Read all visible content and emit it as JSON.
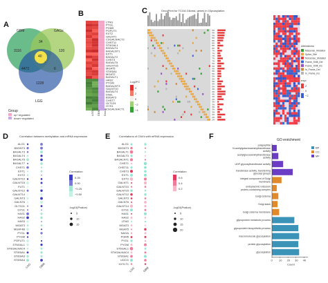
{
  "panels": {
    "A": {
      "label": "A",
      "sets": [
        "GBM",
        "GAGs",
        "LGG"
      ],
      "regions": {
        "gbm_only": "3116",
        "gbm_gags": "34",
        "gags_only": "120",
        "center": "40",
        "gbm_lgg": "4472",
        "gags_lgg": "6",
        "lgg_only": "1228",
        "inner": "3"
      },
      "legend": {
        "title": "Group",
        "items": [
          "up−regulated",
          "down−regulated"
        ],
        "colors": [
          "#f4a6c6",
          "#c9a8e8"
        ]
      }
    },
    "B": {
      "label": "B",
      "genes": [
        "LTNG",
        "PYGL",
        "PGM5",
        "POFUT1",
        "EXT2",
        "GALNT1",
        "CSGALNACT2",
        "CHST11",
        "ST6GAL1",
        "B3GALT4",
        "B4GALNT1",
        "EXT1",
        "B3GALT2",
        "CHST3",
        "B4GALT5",
        "GALNT16",
        "MGAT5",
        "ST8SIA1",
        "MGAT2",
        "B4GALT1",
        "HAS2",
        "PYGM",
        "B4GALNT3",
        "GALNT10",
        "B4GALT4",
        "DSEL",
        "B3GAT3",
        "CHST7",
        "GLT1D1",
        "GYS1",
        "CSGALNACT1"
      ],
      "columns": [
        "LGG",
        "GBM",
        "Group"
      ],
      "legend_title": "Log2FC",
      "legend_ticks": [
        "4",
        "2",
        "0",
        "−2",
        "−4"
      ]
    },
    "C": {
      "label": "C",
      "title": "OncoPrint for TCGA Glioma, genes in Glycosylation",
      "legend_title": "Alterations",
      "legend_items": [
        "Missense_Mutation",
        "Splice_Site",
        "Nonsense_Mutation",
        "Frame_Shift_Del",
        "Frame_Shift_Ins",
        "In_Frame_Del",
        "In_Frame_Ins"
      ],
      "legend_colors": [
        "#2ea02e",
        "#e8a33c",
        "#e23b3b",
        "#3b63d6",
        "#9a4fc9",
        "#c9883b",
        "#b5b5b5"
      ],
      "heat_title": "expr",
      "heat_ticks": [
        "2",
        "0",
        "−2"
      ]
    },
    "D": {
      "label": "D",
      "title": "Correlation between methylation and mRNA expression",
      "genes": [
        "ALG1",
        "B3GNT3",
        "B4GALT3",
        "B4GALT4",
        "B4GALT5",
        "B4GALT7",
        "CHST1",
        "EXT1",
        "EXT2",
        "GALNT10",
        "GALNT15",
        "FUT1",
        "GALNT12",
        "GALNT14",
        "GALNT3",
        "GALNT6",
        "GLT1D1",
        "GYS1",
        "HAS1",
        "HAS2",
        "HAS3",
        "MGAT3",
        "MGAT4B",
        "PYGL",
        "PYGM",
        "POFUT1",
        "ST6GAL1",
        "ST6GALNAC4",
        "ST8SIA1",
        "ST8SIA3",
        "ST8SIA4"
      ],
      "columns": [
        "LGG",
        "GBM"
      ],
      "cor_title": "Correlation",
      "cor_ticks": [
        "0.25",
        "0.00",
        "−0.25",
        "−0.50"
      ],
      "size_title": "-log10(Pvalue)",
      "size_ticks": [
        "5",
        "10",
        "15"
      ]
    },
    "E": {
      "label": "E",
      "title": "Correlations of CNVs with mRNA expression",
      "genes": [
        "ALG1",
        "B3GNT3",
        "B4GALT1",
        "B4GALT3",
        "B4GALNT1",
        "CHST1",
        "CHST11",
        "CHST3",
        "EXT1",
        "EXT2",
        "GALNT1",
        "GALNT10",
        "GALNT15",
        "GALNT12",
        "GALNT3",
        "GALNT6",
        "GALNT14",
        "GYS1",
        "HAS1",
        "HAS2",
        "LTNG",
        "MGAT3",
        "MGAT5",
        "NAGA",
        "PGM5",
        "PYGL",
        "PYGM",
        "ST6GAL1",
        "ST6GALNAC4",
        "ST8SIA1",
        "UGCG",
        "XXYLT1"
      ],
      "columns": [
        "LGG",
        "GBM"
      ],
      "cor_title": "Correlation",
      "cor_ticks": [
        "0.6",
        "0.4",
        "0.2"
      ],
      "size_title": "-log10(Pvalue)",
      "size_ticks": [
        "5",
        "10",
        "15",
        "20"
      ]
    },
    "F": {
      "label": "F",
      "title": "GO enrichment",
      "legend": [
        "BP",
        "CC",
        "MF"
      ],
      "legend_colors": [
        "#3c93b8",
        "#e08a2c",
        "#6a3dc4"
      ],
      "xlabel": "Count",
      "xticks": [
        "0",
        "10",
        "20",
        "30",
        "40"
      ]
    }
  },
  "chart_data": {
    "type": "bar",
    "title": "GO enrichment",
    "xlabel": "Count",
    "xlim": [
      0,
      45
    ],
    "categories": [
      "polypeptide N-acetylgalactosaminyltransferase activity",
      "acetylglucosaminyltransferase activity",
      "UDP-glycosyltransferase activity",
      "transferase activity, transferring glycosyl groups",
      "integral component of Golgi membrane",
      "endoplasmic reticulum protein-containing complex",
      "Golgi cisterna",
      "Golgi stack",
      "Golgi cisterna membrane",
      "glycoprotein metabolic process",
      "glycoprotein biosynthetic process",
      "macromolecule glycosylation",
      "protein glycosylation",
      "glycosylation"
    ],
    "groups": [
      "MF",
      "MF",
      "MF",
      "MF",
      "CC",
      "CC",
      "CC",
      "CC",
      "CC",
      "BP",
      "BP",
      "BP",
      "BP",
      "BP"
    ],
    "values": [
      6,
      8,
      14,
      26,
      12,
      6,
      8,
      7,
      9,
      28,
      33,
      34,
      33,
      34
    ]
  }
}
